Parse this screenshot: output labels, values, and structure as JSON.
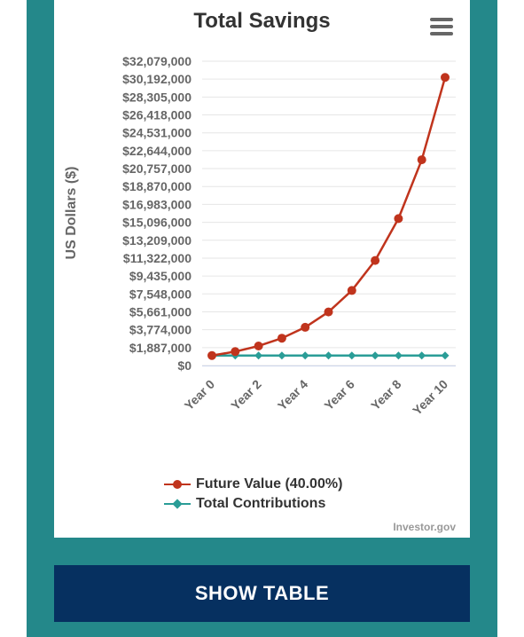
{
  "chart_data": {
    "type": "line",
    "title": "Total Savings",
    "ylabel": "US Dollars ($)",
    "xlabel": "",
    "categories": [
      "Year 0",
      "Year 1",
      "Year 2",
      "Year 3",
      "Year 4",
      "Year 5",
      "Year 6",
      "Year 7",
      "Year 8",
      "Year 9",
      "Year 10"
    ],
    "x_tick_labels": [
      "Year 0",
      "Year 2",
      "Year 4",
      "Year 6",
      "Year 8",
      "Year 10"
    ],
    "y_tick_labels": [
      "$0",
      "$1,887,000",
      "$3,774,000",
      "$5,661,000",
      "$7,548,000",
      "$9,435,000",
      "$11,322,000",
      "$13,209,000",
      "$15,096,000",
      "$16,983,000",
      "$18,870,000",
      "$20,757,000",
      "$22,644,000",
      "$24,531,000",
      "$26,418,000",
      "$28,305,000",
      "$30,192,000",
      "$32,079,000"
    ],
    "ylim": [
      0,
      32079000
    ],
    "grid": true,
    "legend_position": "bottom-center",
    "series": [
      {
        "name": "Future Value (40.00%)",
        "color": "#c0341d",
        "marker": "circle",
        "values": [
          1050000,
          1470000,
          2060000,
          2880000,
          4030000,
          5650000,
          7910000,
          11070000,
          15490000,
          21690000,
          30370000
        ]
      },
      {
        "name": "Total Contributions",
        "color": "#2a9d97",
        "marker": "diamond",
        "values": [
          1050000,
          1050000,
          1050000,
          1050000,
          1050000,
          1050000,
          1050000,
          1050000,
          1050000,
          1050000,
          1050000
        ]
      }
    ]
  },
  "credits": "Investor.gov",
  "show_table_label": "SHOW TABLE"
}
